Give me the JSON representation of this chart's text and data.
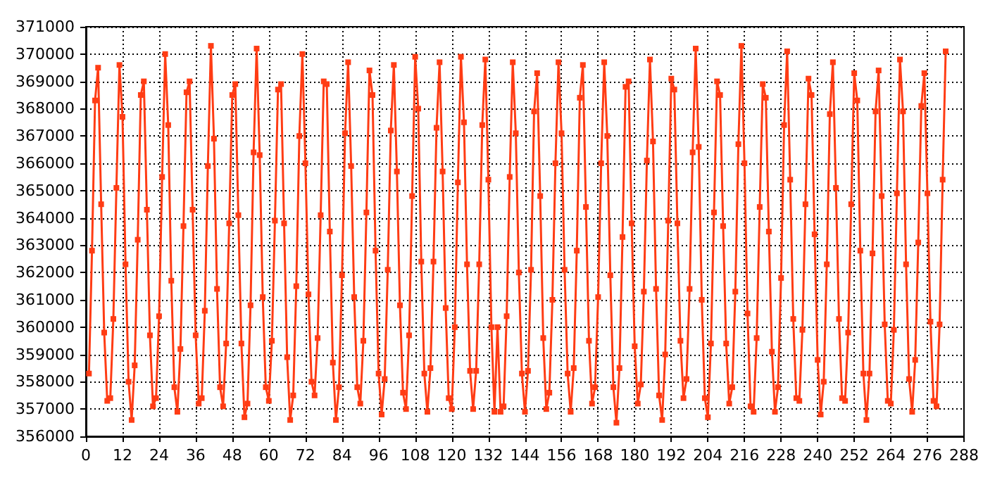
{
  "chart_data": {
    "type": "line",
    "color": "#ff3c14",
    "marker": "square",
    "line_style": "solid",
    "grid": true,
    "xlim": [
      0,
      288
    ],
    "xticks": [
      0,
      12,
      24,
      36,
      48,
      60,
      72,
      84,
      96,
      108,
      120,
      132,
      144,
      156,
      168,
      180,
      192,
      204,
      216,
      228,
      240,
      252,
      264,
      276,
      288
    ],
    "ylim": [
      356000,
      371000
    ],
    "yticks": [
      356000,
      357000,
      358000,
      359000,
      360000,
      361000,
      362000,
      363000,
      364000,
      365000,
      366000,
      367000,
      368000,
      369000,
      370000,
      371000
    ],
    "x": [
      1,
      2,
      3,
      4,
      5,
      6,
      7,
      8,
      9,
      10,
      11,
      12,
      13,
      14,
      15,
      16,
      17,
      18,
      19,
      20,
      21,
      22,
      23,
      24,
      25,
      26,
      27,
      28,
      29,
      30,
      31,
      32,
      33,
      34,
      35,
      36,
      37,
      38,
      39,
      40,
      41,
      42,
      43,
      44,
      45,
      46,
      47,
      48,
      49,
      50,
      51,
      52,
      53,
      54,
      55,
      56,
      57,
      58,
      59,
      60,
      61,
      62,
      63,
      64,
      65,
      66,
      67,
      68,
      69,
      70,
      71,
      72,
      73,
      74,
      75,
      76,
      77,
      78,
      79,
      80,
      81,
      82,
      83,
      84,
      85,
      86,
      87,
      88,
      89,
      90,
      91,
      92,
      93,
      94,
      95,
      96,
      97,
      98,
      99,
      100,
      101,
      102,
      103,
      104,
      105,
      106,
      107,
      108,
      109,
      110,
      111,
      112,
      113,
      114,
      115,
      116,
      117,
      118,
      119,
      120,
      121,
      122,
      123,
      124,
      125,
      126,
      127,
      128,
      129,
      130,
      131,
      132,
      133,
      134,
      135,
      136,
      137,
      138,
      139,
      140,
      141,
      142,
      143,
      144,
      145,
      146,
      147,
      148,
      149,
      150,
      151,
      152,
      153,
      154,
      155,
      156,
      157,
      158,
      159,
      160,
      161,
      162,
      163,
      164,
      165,
      166,
      167,
      168,
      169,
      170,
      171,
      172,
      173,
      174,
      175,
      176,
      177,
      178,
      179,
      180,
      181,
      182,
      183,
      184,
      185,
      186,
      187,
      188,
      189,
      190,
      191,
      192,
      193,
      194,
      195,
      196,
      197,
      198,
      199,
      200,
      201,
      202,
      203,
      204,
      205,
      206,
      207,
      208,
      209,
      210,
      211,
      212,
      213,
      214,
      215,
      216,
      217,
      218,
      219,
      220,
      221,
      222,
      223,
      224,
      225,
      226,
      227,
      228,
      229,
      230,
      231,
      232,
      233,
      234,
      235,
      236,
      237,
      238,
      239,
      240,
      241,
      242,
      243,
      244,
      245,
      246,
      247,
      248,
      249,
      250,
      251,
      252,
      253,
      254,
      255,
      256,
      257,
      258,
      259,
      260,
      261,
      262,
      263,
      264,
      265,
      266,
      267,
      268,
      269,
      270,
      271,
      272,
      273,
      274,
      275,
      276,
      277,
      278,
      279,
      280,
      281,
      282
    ],
    "values": [
      358300,
      362800,
      368300,
      369500,
      364500,
      359800,
      357300,
      357400,
      360300,
      365100,
      369600,
      367700,
      362300,
      358000,
      356600,
      358600,
      363200,
      368500,
      369000,
      364300,
      359700,
      357100,
      357400,
      360400,
      365500,
      370000,
      367400,
      361700,
      357800,
      356900,
      359200,
      363700,
      368600,
      369000,
      364300,
      359700,
      357200,
      357400,
      360600,
      365900,
      370300,
      366900,
      361400,
      357800,
      357100,
      359400,
      363800,
      368500,
      368900,
      364100,
      359400,
      356700,
      357200,
      360800,
      366400,
      370200,
      366300,
      361100,
      357800,
      357300,
      359500,
      363900,
      368700,
      368900,
      363800,
      358900,
      356600,
      357500,
      361500,
      367000,
      370000,
      366000,
      361200,
      358000,
      357500,
      359600,
      364100,
      369000,
      368900,
      363500,
      358700,
      356600,
      357800,
      361900,
      367100,
      369700,
      365900,
      361100,
      357800,
      357200,
      359500,
      364200,
      369400,
      368500,
      362800,
      358300,
      356800,
      358100,
      362100,
      367200,
      369600,
      365700,
      360800,
      357600,
      357000,
      359700,
      364800,
      369900,
      368000,
      362400,
      358300,
      356900,
      358500,
      362400,
      367300,
      369700,
      365700,
      360700,
      357400,
      357000,
      360000,
      365300,
      369900,
      367500,
      362300,
      358400,
      357000,
      358400,
      362300,
      367400,
      369800,
      365400,
      360000,
      356900,
      360000,
      356900,
      357100,
      360400,
      365500,
      369700,
      367100,
      362000,
      358300,
      356900,
      358400,
      362100,
      367900,
      369300,
      364800,
      359600,
      357000,
      357600,
      361000,
      366000,
      369700,
      367100,
      362100,
      358300,
      356900,
      358500,
      362800,
      368400,
      369600,
      364400,
      359500,
      357200,
      357800,
      361100,
      366000,
      369700,
      367000,
      361900,
      357800,
      356500,
      358500,
      363300,
      368800,
      369000,
      363800,
      359300,
      357200,
      357900,
      361300,
      366100,
      369800,
      366800,
      361400,
      357500,
      356600,
      359000,
      363900,
      369100,
      368700,
      363800,
      359500,
      357400,
      358100,
      361400,
      366400,
      370200,
      366600,
      361000,
      357400,
      356700,
      359400,
      364200,
      369000,
      368500,
      363700,
      359400,
      357200,
      357800,
      361300,
      366700,
      370300,
      366000,
      360500,
      357100,
      356900,
      359600,
      364400,
      368900,
      368400,
      363500,
      359100,
      356900,
      357800,
      361800,
      367400,
      370100,
      365400,
      360300,
      357400,
      357300,
      359900,
      364500,
      369100,
      368500,
      363400,
      358800,
      356800,
      358000,
      362300,
      367800,
      369700,
      365100,
      360300,
      357400,
      357300,
      359800,
      364500,
      369300,
      368300,
      362800,
      358300,
      356600,
      358300,
      362700,
      367900,
      369400,
      364800,
      360100,
      357300,
      357200,
      359900,
      364900,
      369800,
      367900,
      362300,
      358100,
      356900,
      358800,
      363100,
      368100,
      369300,
      364900,
      360200,
      357300,
      357100,
      360100,
      365400,
      370100
    ]
  }
}
